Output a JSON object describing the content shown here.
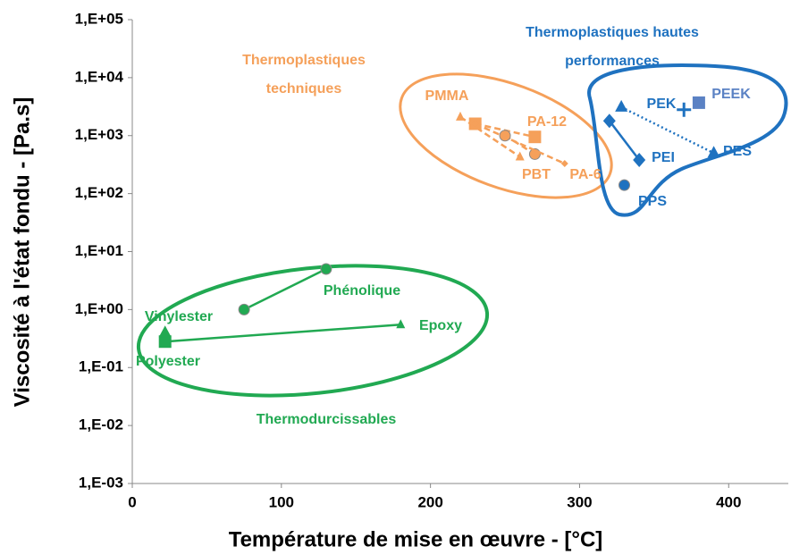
{
  "chart_data": {
    "type": "scatter",
    "xlabel": "Température de mise en œuvre - [°C]",
    "ylabel": "Viscosité à l'état fondu - [Pa.s]",
    "xlim": [
      0,
      440
    ],
    "xticks": [
      0,
      100,
      200,
      300,
      400
    ],
    "ylim": [
      0.001,
      100000
    ],
    "yscale": "log",
    "yticks": [
      {
        "value": 100000,
        "label": "1,E+05"
      },
      {
        "value": 10000,
        "label": "1,E+04"
      },
      {
        "value": 1000,
        "label": "1,E+03"
      },
      {
        "value": 100,
        "label": "1,E+02"
      },
      {
        "value": 10,
        "label": "1,E+01"
      },
      {
        "value": 1,
        "label": "1,E+00"
      },
      {
        "value": 0.1,
        "label": "1,E-01"
      },
      {
        "value": 0.01,
        "label": "1,E-02"
      },
      {
        "value": 0.001,
        "label": "1,E-03"
      }
    ],
    "series": [
      {
        "name": "Phénolique",
        "color": "#21a952",
        "markers": [
          "circle",
          "circle"
        ],
        "dash": "solid",
        "x": [
          75,
          130
        ],
        "values": [
          1.0,
          5.0
        ]
      },
      {
        "name": "Polyester",
        "color": "#21a952",
        "markers": [
          "square",
          "none"
        ],
        "dash": "solid",
        "x": [
          22,
          180
        ],
        "values": [
          0.28,
          0.55
        ]
      },
      {
        "name": "Epoxy",
        "color": "#21a952",
        "markers": [
          "smalltriangle"
        ],
        "dash": "solid",
        "x": [
          180
        ],
        "values": [
          0.55
        ]
      },
      {
        "name": "Vinylester",
        "color": "#21a952",
        "markers": [
          "triangle"
        ],
        "dash": "solid",
        "x": [
          22
        ],
        "values": [
          0.4
        ]
      },
      {
        "name": "PMMA",
        "color": "#f5a05a",
        "markers": [
          "smalltriangle",
          "smalltriangle"
        ],
        "dash": "dashed",
        "x": [
          220,
          260
        ],
        "values": [
          2100,
          430
        ]
      },
      {
        "name": "PA-12",
        "color": "#f5a05a",
        "markers": [
          "square",
          "square"
        ],
        "dash": "dashed",
        "x": [
          230,
          270
        ],
        "values": [
          1600,
          950
        ]
      },
      {
        "name": "PBT",
        "color": "#f5a05a",
        "markers": [
          "circle",
          "circle"
        ],
        "dash": "dashed",
        "x": [
          250,
          270
        ],
        "values": [
          1000,
          480
        ]
      },
      {
        "name": "PA-6",
        "color": "#f5a05a",
        "markers": [
          "smalldiamond",
          "smalldiamond"
        ],
        "dash": "dashed",
        "x": [
          230,
          290
        ],
        "values": [
          1600,
          330
        ]
      },
      {
        "name": "PEI",
        "color": "#1f72c0",
        "markers": [
          "diamond",
          "diamond"
        ],
        "dash": "solid",
        "x": [
          320,
          340
        ],
        "values": [
          1800,
          380
        ]
      },
      {
        "name": "PES",
        "color": "#1f72c0",
        "markers": [
          "triangle",
          "triangle"
        ],
        "dash": "dotted",
        "x": [
          328,
          390
        ],
        "values": [
          3100,
          500
        ]
      },
      {
        "name": "PEK",
        "color": "#1f72c0",
        "markers": [
          "plus"
        ],
        "dash": "solid",
        "x": [
          370
        ],
        "values": [
          2800
        ]
      },
      {
        "name": "PEEK",
        "color": "#5b82c4",
        "markers": [
          "square"
        ],
        "dash": "solid",
        "x": [
          380
        ],
        "values": [
          3700
        ]
      },
      {
        "name": "PPS",
        "color": "#1f72c0",
        "markers": [
          "circle"
        ],
        "dash": "solid",
        "x": [
          330
        ],
        "values": [
          140
        ]
      }
    ],
    "annotations": [
      {
        "lines": [
          "Thermodurcissables"
        ],
        "color": "#21a952"
      },
      {
        "lines": [
          "Thermoplastiques",
          "techniques"
        ],
        "color": "#f5a05a"
      },
      {
        "lines": [
          "Thermoplastiques hautes",
          "performances"
        ],
        "color": "#1f72c0"
      }
    ]
  }
}
